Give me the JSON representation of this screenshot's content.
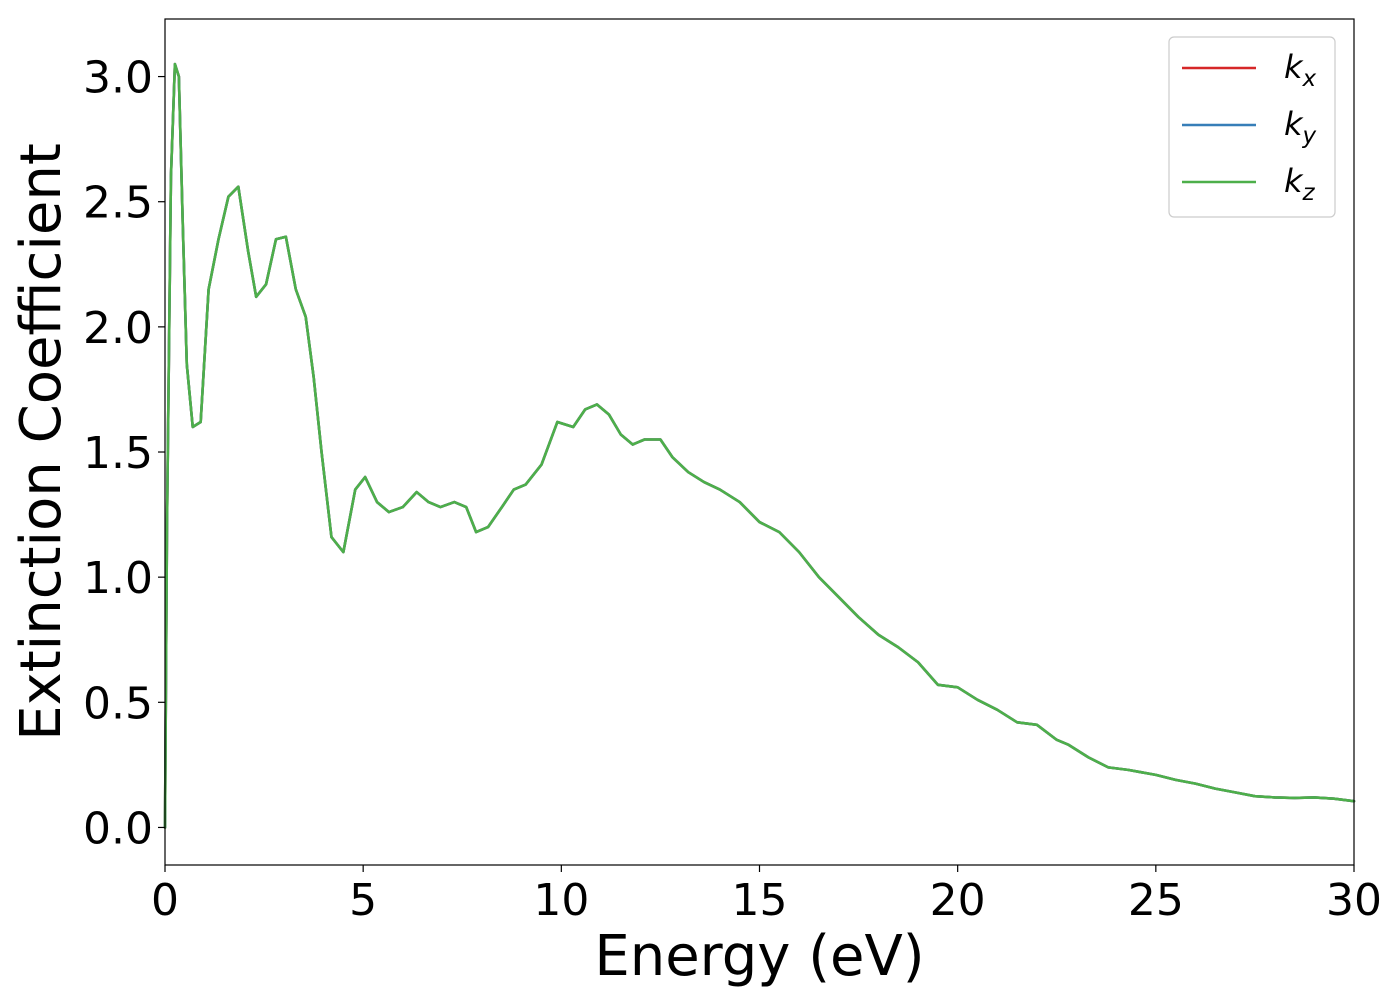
{
  "chart_data": {
    "type": "line",
    "title": "",
    "xlabel": "Energy (eV)",
    "ylabel": "Extinction Coefficient",
    "xlim": [
      0,
      30
    ],
    "ylim": [
      -0.15,
      3.23
    ],
    "xticks": [
      0,
      5,
      10,
      15,
      20,
      25,
      30
    ],
    "xtick_labels": [
      "0",
      "5",
      "10",
      "15",
      "20",
      "25",
      "30"
    ],
    "yticks": [
      0.0,
      0.5,
      1.0,
      1.5,
      2.0,
      2.5,
      3.0
    ],
    "ytick_labels": [
      "0.0",
      "0.5",
      "1.0",
      "1.5",
      "2.0",
      "2.5",
      "3.0"
    ],
    "grid": false,
    "legend_position": "top-right",
    "x": [
      0.0,
      0.05,
      0.15,
      0.25,
      0.35,
      0.45,
      0.55,
      0.7,
      0.9,
      1.1,
      1.35,
      1.6,
      1.85,
      2.1,
      2.3,
      2.55,
      2.8,
      3.05,
      3.3,
      3.55,
      3.75,
      3.95,
      4.2,
      4.5,
      4.8,
      5.05,
      5.35,
      5.65,
      6.0,
      6.35,
      6.65,
      6.95,
      7.3,
      7.6,
      7.85,
      8.15,
      8.5,
      8.8,
      9.1,
      9.5,
      9.9,
      10.3,
      10.6,
      10.9,
      11.2,
      11.5,
      11.8,
      12.1,
      12.5,
      12.8,
      13.2,
      13.6,
      14.0,
      14.5,
      15.0,
      15.5,
      16.0,
      16.5,
      17.0,
      17.5,
      18.0,
      18.5,
      19.0,
      19.5,
      20.0,
      20.5,
      21.0,
      21.5,
      22.0,
      22.5,
      22.8,
      23.3,
      23.8,
      24.3,
      25.0,
      25.5,
      26.0,
      26.5,
      27.0,
      27.5,
      28.0,
      28.5,
      29.0,
      29.5,
      30.0
    ],
    "series": [
      {
        "name": "k_x",
        "color": "#d62728",
        "values": [
          0.0,
          1.2,
          2.6,
          3.05,
          3.0,
          2.4,
          1.85,
          1.6,
          1.62,
          2.15,
          2.35,
          2.52,
          2.56,
          2.3,
          2.12,
          2.17,
          2.35,
          2.36,
          2.15,
          2.04,
          1.8,
          1.5,
          1.16,
          1.1,
          1.35,
          1.4,
          1.3,
          1.26,
          1.28,
          1.34,
          1.3,
          1.28,
          1.3,
          1.28,
          1.18,
          1.2,
          1.28,
          1.35,
          1.37,
          1.45,
          1.62,
          1.6,
          1.67,
          1.69,
          1.65,
          1.57,
          1.53,
          1.55,
          1.55,
          1.48,
          1.42,
          1.38,
          1.35,
          1.3,
          1.22,
          1.18,
          1.1,
          1.0,
          0.92,
          0.84,
          0.77,
          0.72,
          0.66,
          0.57,
          0.56,
          0.51,
          0.47,
          0.42,
          0.41,
          0.35,
          0.33,
          0.28,
          0.24,
          0.23,
          0.21,
          0.19,
          0.175,
          0.155,
          0.14,
          0.125,
          0.12,
          0.118,
          0.12,
          0.115,
          0.105
        ]
      },
      {
        "name": "k_y",
        "color": "#377eb8",
        "values": [
          0.0,
          1.2,
          2.6,
          3.05,
          3.0,
          2.4,
          1.85,
          1.6,
          1.62,
          2.15,
          2.35,
          2.52,
          2.56,
          2.3,
          2.12,
          2.17,
          2.35,
          2.36,
          2.15,
          2.04,
          1.8,
          1.5,
          1.16,
          1.1,
          1.35,
          1.4,
          1.3,
          1.26,
          1.28,
          1.34,
          1.3,
          1.28,
          1.3,
          1.28,
          1.18,
          1.2,
          1.28,
          1.35,
          1.37,
          1.45,
          1.62,
          1.6,
          1.67,
          1.69,
          1.65,
          1.57,
          1.53,
          1.55,
          1.55,
          1.48,
          1.42,
          1.38,
          1.35,
          1.3,
          1.22,
          1.18,
          1.1,
          1.0,
          0.92,
          0.84,
          0.77,
          0.72,
          0.66,
          0.57,
          0.56,
          0.51,
          0.47,
          0.42,
          0.41,
          0.35,
          0.33,
          0.28,
          0.24,
          0.23,
          0.21,
          0.19,
          0.175,
          0.155,
          0.14,
          0.125,
          0.12,
          0.118,
          0.12,
          0.115,
          0.105
        ]
      },
      {
        "name": "k_z",
        "color": "#4daf4a",
        "values": [
          0.0,
          1.2,
          2.6,
          3.05,
          3.0,
          2.4,
          1.85,
          1.6,
          1.62,
          2.15,
          2.35,
          2.52,
          2.56,
          2.3,
          2.12,
          2.17,
          2.35,
          2.36,
          2.15,
          2.04,
          1.8,
          1.5,
          1.16,
          1.1,
          1.35,
          1.4,
          1.3,
          1.26,
          1.28,
          1.34,
          1.3,
          1.28,
          1.3,
          1.28,
          1.18,
          1.2,
          1.28,
          1.35,
          1.37,
          1.45,
          1.62,
          1.6,
          1.67,
          1.69,
          1.65,
          1.57,
          1.53,
          1.55,
          1.55,
          1.48,
          1.42,
          1.38,
          1.35,
          1.3,
          1.22,
          1.18,
          1.1,
          1.0,
          0.92,
          0.84,
          0.77,
          0.72,
          0.66,
          0.57,
          0.56,
          0.51,
          0.47,
          0.42,
          0.41,
          0.35,
          0.33,
          0.28,
          0.24,
          0.23,
          0.21,
          0.19,
          0.175,
          0.155,
          0.14,
          0.125,
          0.12,
          0.118,
          0.12,
          0.115,
          0.105
        ]
      }
    ],
    "legend": [
      {
        "base": "k",
        "sub": "x",
        "color": "#d62728"
      },
      {
        "base": "k",
        "sub": "y",
        "color": "#377eb8"
      },
      {
        "base": "k",
        "sub": "z",
        "color": "#4daf4a"
      }
    ]
  }
}
